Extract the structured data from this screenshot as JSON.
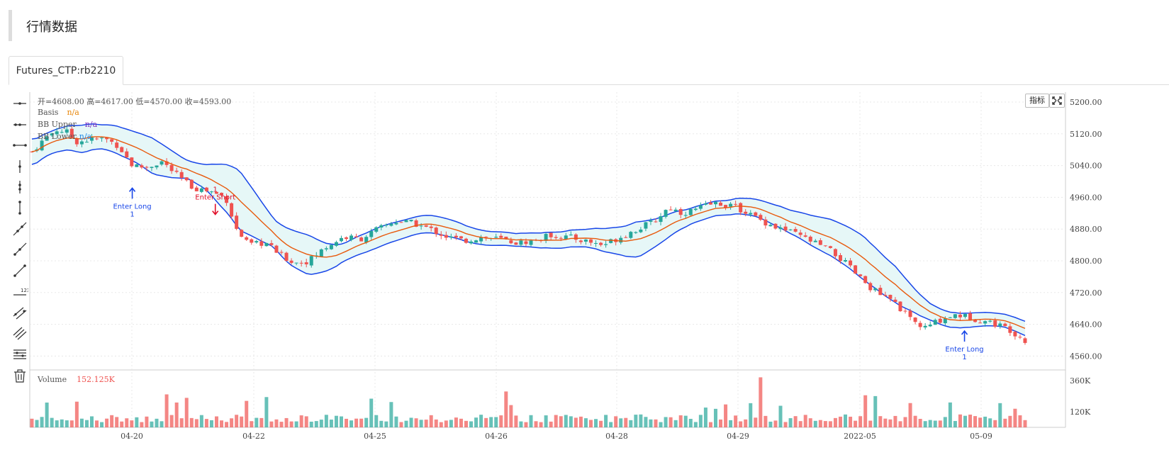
{
  "page": {
    "section_title": "行情数据",
    "tab_label": "Futures_CTP:rb2210"
  },
  "toolbar": {
    "tools": [
      "horizontal-line-icon",
      "horizontal-ray-icon",
      "horizontal-segment-icon",
      "vertical-line-icon",
      "vertical-ray-icon",
      "vertical-segment-icon",
      "trend-line-icon",
      "trend-ray-icon",
      "trend-segment-icon",
      "price-range-icon",
      "parallel-channel-icon",
      "multi-channel-icon",
      "fibonacci-icon",
      "delete-icon"
    ]
  },
  "buttons": {
    "indicator_label": "指标",
    "fullscreen_icon": "fullscreen-icon"
  },
  "legend": {
    "ohlc": "开=4608.00    高=4617.00    低=4570.00    收=4593.00",
    "basis_label": "Basis",
    "basis_value": "n/a",
    "upper_label": "BB  Upper",
    "upper_value": "n/a",
    "lower_label": "BB Lower",
    "lower_value": "n/a",
    "volume_label": "Volume",
    "volume_value": "152.125K"
  },
  "colors": {
    "up": "#26a69a",
    "down": "#ef5350",
    "basis": "#e8590c",
    "band": "#1846e8",
    "band_fill": "#e6f7f7",
    "upper_text": "#7b2cbf",
    "basis_text": "#e8870c",
    "lower_text": "#1e88e5",
    "short": "#e0102a",
    "long": "#1846e8"
  },
  "chart_data": {
    "type": "candlestick",
    "title": "Futures_CTP:rb2210",
    "y_ticks": [
      "5200.00",
      "5120.00",
      "5040.00",
      "4960.00",
      "4880.00",
      "4800.00",
      "4720.00",
      "4640.00",
      "4560.00"
    ],
    "ylim": [
      4525,
      5225
    ],
    "x_ticks": [
      "04-20",
      "04-22",
      "04-25",
      "04-26",
      "04-28",
      "04-29",
      "2022-05",
      "05-09"
    ],
    "volume_ticks": [
      "360K",
      "120K"
    ],
    "volume_max": 420,
    "bars": 200,
    "price_path": [
      [
        0,
        5075
      ],
      [
        8,
        5110
      ],
      [
        14,
        5130
      ],
      [
        20,
        5125
      ],
      [
        26,
        5100
      ],
      [
        34,
        5105
      ],
      [
        42,
        5108
      ],
      [
        50,
        5090
      ],
      [
        58,
        5040
      ],
      [
        66,
        5035
      ],
      [
        75,
        5050
      ],
      [
        84,
        5015
      ],
      [
        93,
        4985
      ],
      [
        103,
        4975
      ],
      [
        112,
        4960
      ],
      [
        118,
        4880
      ],
      [
        125,
        4840
      ],
      [
        135,
        4845
      ],
      [
        145,
        4810
      ],
      [
        152,
        4795
      ],
      [
        160,
        4800
      ],
      [
        170,
        4835
      ],
      [
        180,
        4860
      ],
      [
        190,
        4855
      ],
      [
        200,
        4880
      ],
      [
        210,
        4900
      ],
      [
        220,
        4895
      ],
      [
        230,
        4880
      ],
      [
        240,
        4860
      ],
      [
        250,
        4850
      ],
      [
        260,
        4860
      ],
      [
        270,
        4855
      ],
      [
        280,
        4845
      ],
      [
        290,
        4850
      ],
      [
        300,
        4865
      ],
      [
        310,
        4860
      ],
      [
        320,
        4850
      ],
      [
        330,
        4840
      ],
      [
        340,
        4860
      ],
      [
        350,
        4880
      ],
      [
        360,
        4900
      ],
      [
        368,
        4935
      ],
      [
        376,
        4920
      ],
      [
        384,
        4930
      ],
      [
        394,
        4945
      ],
      [
        404,
        4940
      ],
      [
        412,
        4925
      ],
      [
        420,
        4905
      ],
      [
        430,
        4885
      ],
      [
        440,
        4870
      ],
      [
        450,
        4850
      ],
      [
        460,
        4830
      ],
      [
        470,
        4795
      ],
      [
        480,
        4750
      ],
      [
        490,
        4715
      ],
      [
        500,
        4690
      ],
      [
        508,
        4650
      ],
      [
        516,
        4630
      ],
      [
        524,
        4650
      ],
      [
        534,
        4665
      ],
      [
        544,
        4655
      ],
      [
        554,
        4645
      ],
      [
        564,
        4630
      ],
      [
        574,
        4600
      ]
    ],
    "bb_band_half_width": [
      [
        0,
        32
      ],
      [
        10,
        28
      ],
      [
        20,
        30
      ],
      [
        30,
        35
      ],
      [
        40,
        30
      ],
      [
        50,
        35
      ],
      [
        60,
        38
      ],
      [
        70,
        45
      ],
      [
        80,
        35
      ],
      [
        90,
        22
      ],
      [
        100,
        30
      ],
      [
        110,
        55
      ],
      [
        120,
        75
      ],
      [
        130,
        55
      ],
      [
        140,
        35
      ],
      [
        150,
        45
      ],
      [
        160,
        50
      ],
      [
        170,
        35
      ],
      [
        180,
        22
      ],
      [
        200,
        25
      ],
      [
        220,
        22
      ],
      [
        240,
        22
      ],
      [
        260,
        18
      ],
      [
        280,
        16
      ],
      [
        300,
        20
      ],
      [
        320,
        22
      ],
      [
        340,
        35
      ],
      [
        350,
        45
      ],
      [
        360,
        35
      ],
      [
        380,
        20
      ],
      [
        400,
        18
      ],
      [
        420,
        22
      ],
      [
        440,
        30
      ],
      [
        460,
        45
      ],
      [
        480,
        55
      ],
      [
        500,
        45
      ],
      [
        510,
        30
      ],
      [
        520,
        20
      ],
      [
        540,
        18
      ],
      [
        560,
        16
      ],
      [
        574,
        18
      ]
    ],
    "signals": [
      {
        "label": "Enter Long",
        "count": "1",
        "direction": "long",
        "bar": 58,
        "price": 4985
      },
      {
        "label": "Enter Short",
        "count": "1",
        "direction": "short",
        "bar": 106,
        "price": 4915
      },
      {
        "label": "Enter Long",
        "count": "1",
        "direction": "long",
        "bar": 539,
        "price": 4625
      }
    ]
  }
}
